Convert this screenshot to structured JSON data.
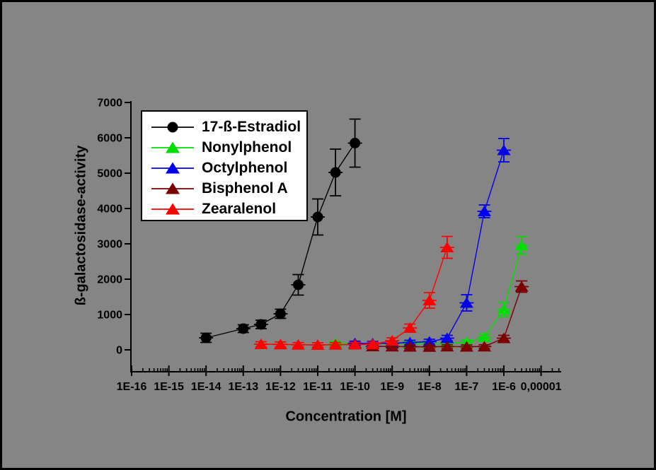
{
  "window": {
    "background_color": "#858585",
    "border_color": "#000000"
  },
  "chart_data": {
    "type": "scatter",
    "title": "",
    "xlabel": "Concentration [M]",
    "ylabel": "ß-galactosidase-activity",
    "grid": false,
    "legend_position": "top-left-inside",
    "x_axis": {
      "scale": "log",
      "min_exponent": -16,
      "max_exponent": -5,
      "tick_labels": [
        "1E-16",
        "1E-15",
        "1E-14",
        "1E-13",
        "1E-12",
        "1E-11",
        "1E-10",
        "1E-9",
        "1E-8",
        "1E-7",
        "1E-6",
        "0,00001"
      ]
    },
    "y_axis": {
      "min": 0,
      "max": 7000,
      "major_step": 1000,
      "minor_step": 500,
      "tick_labels": [
        "0",
        "1000",
        "2000",
        "3000",
        "4000",
        "5000",
        "6000",
        "7000"
      ]
    },
    "series": [
      {
        "name": "17-ß-Estradiol",
        "color": "#000000",
        "marker": "circle",
        "points": [
          {
            "x": 1e-14,
            "y": 340,
            "err": 130
          },
          {
            "x": 1e-13,
            "y": 600,
            "err": 110
          },
          {
            "x": 3e-13,
            "y": 720,
            "err": 120
          },
          {
            "x": 1e-12,
            "y": 1020,
            "err": 130
          },
          {
            "x": 3e-12,
            "y": 1840,
            "err": 290
          },
          {
            "x": 1e-11,
            "y": 3760,
            "err": 510
          },
          {
            "x": 3e-11,
            "y": 5020,
            "err": 660
          },
          {
            "x": 1e-10,
            "y": 5850,
            "err": 680
          }
        ]
      },
      {
        "name": "Nonylphenol",
        "color": "#00DD00",
        "marker": "triangle",
        "points": [
          {
            "x": 3e-11,
            "y": 180,
            "err": 60
          },
          {
            "x": 1e-10,
            "y": 175,
            "err": 60
          },
          {
            "x": 3e-10,
            "y": 170,
            "err": 60
          },
          {
            "x": 1e-09,
            "y": 175,
            "err": 60
          },
          {
            "x": 3e-09,
            "y": 180,
            "err": 60
          },
          {
            "x": 1e-08,
            "y": 180,
            "err": 60
          },
          {
            "x": 3e-08,
            "y": 185,
            "err": 60
          },
          {
            "x": 1e-07,
            "y": 210,
            "err": 70
          },
          {
            "x": 3e-07,
            "y": 360,
            "err": 90
          },
          {
            "x": 1e-06,
            "y": 1140,
            "err": 200
          },
          {
            "x": 3e-06,
            "y": 2950,
            "err": 250
          }
        ]
      },
      {
        "name": "Octylphenol",
        "color": "#0000EE",
        "marker": "triangle",
        "points": [
          {
            "x": 1e-10,
            "y": 185,
            "err": 60
          },
          {
            "x": 3e-10,
            "y": 180,
            "err": 60
          },
          {
            "x": 1e-09,
            "y": 185,
            "err": 60
          },
          {
            "x": 3e-09,
            "y": 210,
            "err": 60
          },
          {
            "x": 1e-08,
            "y": 230,
            "err": 70
          },
          {
            "x": 3e-08,
            "y": 330,
            "err": 80
          },
          {
            "x": 1e-07,
            "y": 1330,
            "err": 230
          },
          {
            "x": 3e-07,
            "y": 3920,
            "err": 180
          },
          {
            "x": 1e-06,
            "y": 5650,
            "err": 330
          }
        ]
      },
      {
        "name": "Bisphenol A",
        "color": "#7B0000",
        "marker": "triangle",
        "points": [
          {
            "x": 3e-10,
            "y": 100,
            "err": 50
          },
          {
            "x": 1e-09,
            "y": 95,
            "err": 50
          },
          {
            "x": 3e-09,
            "y": 90,
            "err": 50
          },
          {
            "x": 1e-08,
            "y": 85,
            "err": 50
          },
          {
            "x": 3e-08,
            "y": 95,
            "err": 50
          },
          {
            "x": 1e-07,
            "y": 90,
            "err": 50
          },
          {
            "x": 3e-07,
            "y": 95,
            "err": 50
          },
          {
            "x": 1e-06,
            "y": 330,
            "err": 80
          },
          {
            "x": 3e-06,
            "y": 1790,
            "err": 160
          }
        ]
      },
      {
        "name": "Zearalenol",
        "color": "#FF0000",
        "marker": "triangle",
        "points": [
          {
            "x": 3e-13,
            "y": 160,
            "err": 70
          },
          {
            "x": 1e-12,
            "y": 155,
            "err": 70
          },
          {
            "x": 3e-12,
            "y": 145,
            "err": 60
          },
          {
            "x": 1e-11,
            "y": 140,
            "err": 60
          },
          {
            "x": 3e-11,
            "y": 145,
            "err": 60
          },
          {
            "x": 1e-10,
            "y": 150,
            "err": 60
          },
          {
            "x": 3e-10,
            "y": 160,
            "err": 60
          },
          {
            "x": 1e-09,
            "y": 260,
            "err": 80
          },
          {
            "x": 3e-09,
            "y": 620,
            "err": 110
          },
          {
            "x": 1e-08,
            "y": 1400,
            "err": 220
          },
          {
            "x": 3e-08,
            "y": 2900,
            "err": 310
          }
        ]
      }
    ]
  }
}
